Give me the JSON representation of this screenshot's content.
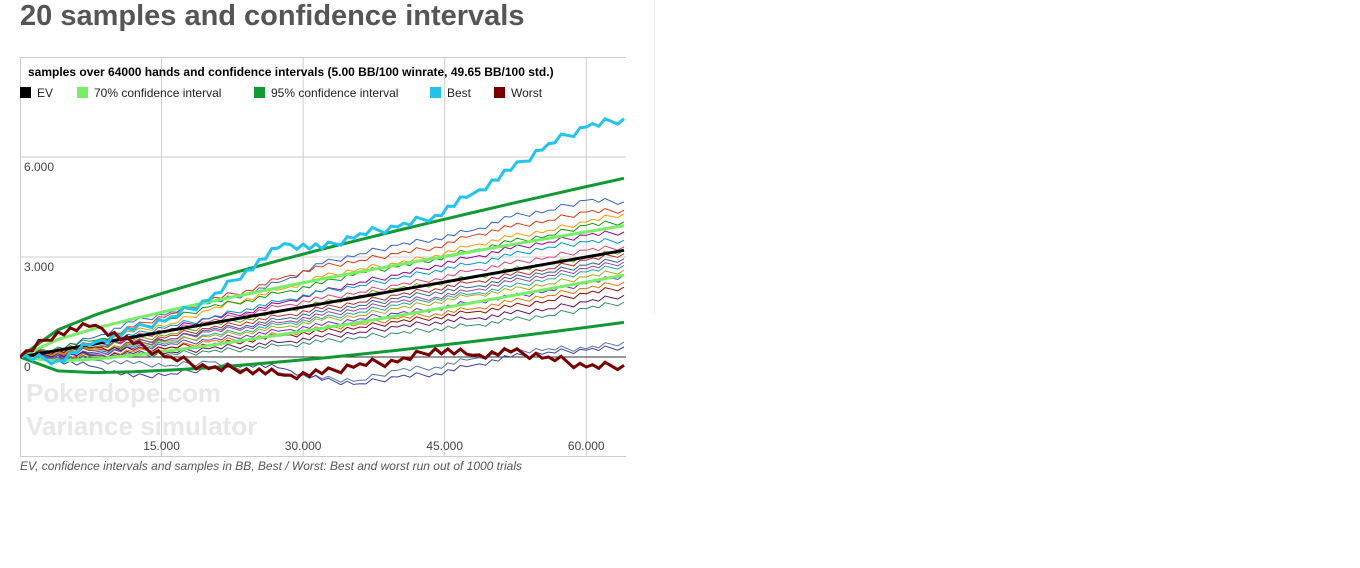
{
  "page": {
    "heading": "20 samples and confidence intervals",
    "caption": "EV, confidence intervals and samples in BB, Best / Worst: Best and worst run out of 1000 trials"
  },
  "watermark": {
    "line1": "Pokerdope.com",
    "line2": "Variance simulator"
  },
  "colors": {
    "ev": "#000000",
    "ci70": "#77ee66",
    "ci95": "#119933",
    "best": "#22c4ee",
    "worst": "#7a0000",
    "sample_palette": [
      "#3366cc",
      "#dc3912",
      "#ff9900",
      "#109618",
      "#990099",
      "#0099c6",
      "#dd4477",
      "#66aa00",
      "#b82e2e",
      "#316395",
      "#994499",
      "#22aa99",
      "#aaaa11",
      "#6633cc",
      "#e67300",
      "#8b0707",
      "#651067",
      "#329262",
      "#5574a6",
      "#3b3eac"
    ]
  },
  "chart_data": {
    "type": "line",
    "title": "samples over 64000 hands and confidence intervals (5.00 BB/100 winrate, 49.65 BB/100 std.)",
    "xlabel": "",
    "ylabel": "",
    "x_range": [
      0,
      64000
    ],
    "y_range": [
      -3000,
      9000
    ],
    "x_ticks": [
      {
        "value": 15000,
        "label": "15.000"
      },
      {
        "value": 30000,
        "label": "30.000"
      },
      {
        "value": 45000,
        "label": "45.000"
      },
      {
        "value": 60000,
        "label": "60.000"
      }
    ],
    "y_ticks": [
      {
        "value": 0,
        "label": "0"
      },
      {
        "value": 3000,
        "label": "3.000"
      },
      {
        "value": 6000,
        "label": "6.000"
      }
    ],
    "grid": true,
    "legend_position": "top",
    "legend": [
      {
        "label": "EV",
        "color": "#000000"
      },
      {
        "label": "70% confidence interval",
        "color": "#77ee66"
      },
      {
        "label": "95% confidence interval",
        "color": "#119933"
      },
      {
        "label": "Best",
        "color": "#22c4ee"
      },
      {
        "label": "Worst",
        "color": "#7a0000"
      }
    ],
    "winrate_bb_per_100": 5.0,
    "std_bb_per_100": 49.65,
    "hands": 64000,
    "x": [
      0,
      4000,
      8000,
      12000,
      16000,
      20000,
      24000,
      28000,
      32000,
      36000,
      40000,
      44000,
      48000,
      52000,
      56000,
      60000,
      64000
    ],
    "ev": [
      0,
      200,
      400,
      600,
      800,
      1000,
      1200,
      1400,
      1600,
      1800,
      2000,
      2200,
      2400,
      2600,
      2800,
      3000,
      3200
    ],
    "ci70_upper": [
      0,
      526,
      860,
      1145,
      1406,
      1654,
      1888,
      2114,
      2340,
      2554,
      2763,
      2967,
      3167,
      3366,
      3560,
      3752,
      3942
    ],
    "ci70_lower": [
      0,
      -126,
      -60,
      55,
      194,
      346,
      512,
      686,
      860,
      1046,
      1237,
      1433,
      1633,
      1834,
      2040,
      2248,
      2458
    ],
    "ci95_upper": [
      0,
      816,
      1267,
      1643,
      1990,
      2320,
      2631,
      2936,
      3233,
      3517,
      3795,
      4067,
      4334,
      4600,
      4855,
      5111,
      5362
    ],
    "ci95_lower": [
      0,
      -416,
      -467,
      -443,
      -390,
      -320,
      -231,
      -136,
      -33,
      83,
      205,
      333,
      466,
      600,
      745,
      889,
      1038
    ],
    "best": [
      0,
      -100,
      450,
      800,
      1200,
      1700,
      2600,
      3400,
      3250,
      3700,
      3900,
      4250,
      4900,
      5600,
      6400,
      6900,
      7150
    ],
    "worst": [
      0,
      750,
      950,
      400,
      0,
      -350,
      -350,
      -550,
      -500,
      -200,
      -150,
      250,
      50,
      150,
      0,
      -300,
      -250
    ],
    "samples": [
      {
        "values": [
          0,
          250,
          600,
          1050,
          1350,
          1600,
          1900,
          2300,
          2800,
          3100,
          3350,
          3550,
          3800,
          4200,
          4400,
          4700,
          4650
        ]
      },
      {
        "values": [
          0,
          150,
          450,
          900,
          1300,
          1700,
          2000,
          2400,
          2700,
          2900,
          3100,
          3300,
          3650,
          3900,
          4100,
          4350,
          4400
        ]
      },
      {
        "values": [
          0,
          100,
          400,
          750,
          1000,
          1400,
          1750,
          2050,
          2400,
          2650,
          2800,
          3050,
          3350,
          3600,
          3800,
          4050,
          4300
        ]
      },
      {
        "values": [
          0,
          300,
          500,
          850,
          1150,
          1500,
          1700,
          1950,
          2200,
          2550,
          2700,
          2950,
          3200,
          3450,
          3650,
          3950,
          4050
        ]
      },
      {
        "values": [
          0,
          -50,
          300,
          550,
          850,
          1150,
          1350,
          1650,
          1950,
          2250,
          2450,
          2750,
          3000,
          3250,
          3450,
          3650,
          3750
        ]
      },
      {
        "values": [
          0,
          200,
          350,
          650,
          950,
          1150,
          1450,
          1700,
          1950,
          2150,
          2350,
          2600,
          2800,
          3050,
          3300,
          3450,
          3500
        ]
      },
      {
        "values": [
          0,
          100,
          250,
          600,
          800,
          1050,
          1300,
          1550,
          1750,
          1950,
          2150,
          2350,
          2600,
          2800,
          3000,
          3200,
          3300
        ]
      },
      {
        "values": [
          0,
          50,
          300,
          500,
          700,
          950,
          1150,
          1400,
          1600,
          1850,
          2050,
          2200,
          2400,
          2600,
          2800,
          3000,
          3200
        ]
      },
      {
        "values": [
          0,
          150,
          200,
          400,
          650,
          850,
          1050,
          1250,
          1450,
          1650,
          1850,
          2050,
          2250,
          2450,
          2650,
          2900,
          3100
        ]
      },
      {
        "values": [
          0,
          0,
          150,
          350,
          550,
          800,
          950,
          1150,
          1350,
          1550,
          1750,
          1950,
          2100,
          2350,
          2550,
          2750,
          2950
        ]
      },
      {
        "values": [
          0,
          250,
          400,
          450,
          550,
          750,
          900,
          1050,
          1250,
          1450,
          1650,
          1800,
          2000,
          2250,
          2450,
          2650,
          2850
        ]
      },
      {
        "values": [
          0,
          -100,
          100,
          300,
          450,
          650,
          800,
          1000,
          1150,
          1350,
          1550,
          1750,
          1900,
          2100,
          2350,
          2550,
          2750
        ]
      },
      {
        "values": [
          0,
          150,
          250,
          350,
          500,
          600,
          750,
          900,
          1100,
          1250,
          1450,
          1650,
          1850,
          2000,
          2200,
          2400,
          2600
        ]
      },
      {
        "values": [
          0,
          50,
          100,
          250,
          400,
          500,
          650,
          800,
          950,
          1150,
          1300,
          1450,
          1650,
          1800,
          2000,
          2200,
          2450
        ]
      },
      {
        "values": [
          0,
          -50,
          50,
          150,
          300,
          450,
          550,
          700,
          850,
          1000,
          1150,
          1300,
          1450,
          1650,
          1850,
          2050,
          2250
        ]
      },
      {
        "values": [
          0,
          200,
          300,
          200,
          300,
          350,
          500,
          650,
          750,
          900,
          1050,
          1200,
          1350,
          1500,
          1700,
          1900,
          2100
        ]
      },
      {
        "values": [
          0,
          100,
          50,
          100,
          150,
          250,
          350,
          450,
          600,
          750,
          900,
          1050,
          1150,
          1300,
          1450,
          1650,
          1850
        ]
      },
      {
        "values": [
          0,
          -100,
          0,
          50,
          100,
          150,
          250,
          350,
          450,
          600,
          700,
          850,
          950,
          1100,
          1250,
          1450,
          1650
        ]
      },
      {
        "values": [
          0,
          0,
          -100,
          -200,
          -250,
          -150,
          -350,
          -500,
          -650,
          -700,
          -400,
          -300,
          -50,
          150,
          250,
          250,
          450
        ]
      },
      {
        "values": [
          0,
          -100,
          -300,
          -600,
          -500,
          -350,
          -200,
          -350,
          -700,
          -800,
          -600,
          -500,
          -250,
          0,
          150,
          200,
          300
        ]
      }
    ]
  }
}
